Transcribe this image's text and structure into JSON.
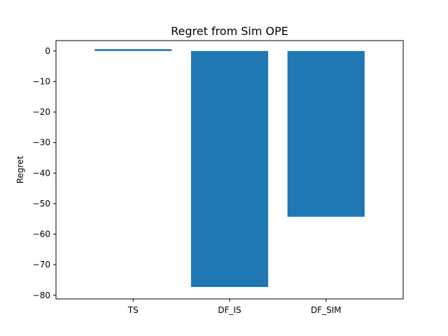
{
  "chart_data": {
    "type": "bar",
    "title": "Regret from Sim OPE",
    "xlabel": "",
    "ylabel": "Regret",
    "categories": [
      "TS",
      "DF_IS",
      "DF_SIM"
    ],
    "values": [
      0.6,
      -77.3,
      -54.3
    ],
    "ylim": [
      -81.2,
      3.4
    ],
    "yticks": [
      0,
      -10,
      -20,
      -30,
      -40,
      -50,
      -60,
      -70,
      -80
    ],
    "ytick_labels": [
      "0",
      "−10",
      "−20",
      "−30",
      "−40",
      "−50",
      "−60",
      "−70",
      "−80"
    ],
    "bar_color": "#1f77b4",
    "grid": false,
    "legend": "none"
  }
}
